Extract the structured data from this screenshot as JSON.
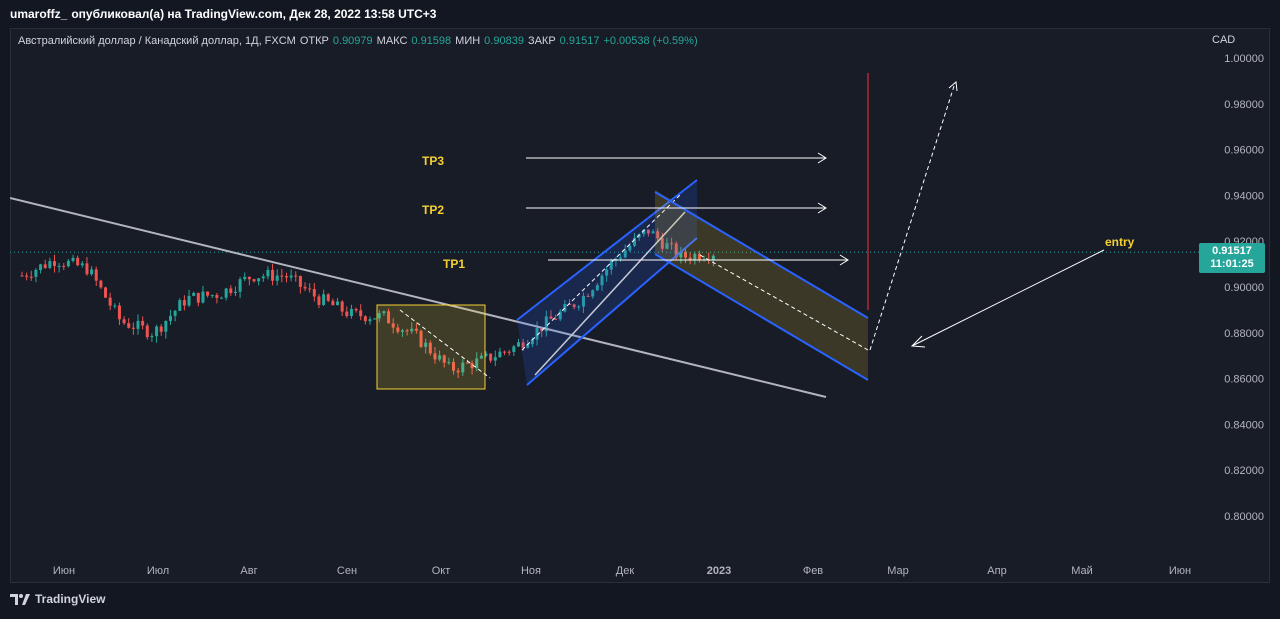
{
  "header": {
    "author": "umaroffz_",
    "published_text": "опубликовал(а) на TradingView.com, Дек 28, 2022 13:58 UTC+3"
  },
  "legend": {
    "symbol": "Австралийский доллар / Канадский доллар, 1Д, FXCM",
    "open_label": "ОТКР",
    "open": "0.90979",
    "high_label": "МАКС",
    "high": "0.91598",
    "low_label": "МИН",
    "low": "0.90839",
    "close_label": "ЗАКР",
    "close": "0.91517",
    "change": "+0.00538 (+0.59%)"
  },
  "price_axis": {
    "currency": "CAD",
    "ticks": [
      "1.00000",
      "0.98000",
      "0.96000",
      "0.94000",
      "0.92000",
      "0.90000",
      "0.88000",
      "0.86000",
      "0.84000",
      "0.82000",
      "0.80000"
    ]
  },
  "time_axis": {
    "ticks": [
      "Июн",
      "Июл",
      "Авг",
      "Сен",
      "Окт",
      "Ноя",
      "Дек",
      "2023",
      "Фев",
      "Мар",
      "Апр",
      "Май",
      "Июн"
    ]
  },
  "last_price": {
    "price": "0.91517",
    "countdown": "11:01:25"
  },
  "annotations": {
    "tp3": "TP3",
    "tp2": "TP2",
    "tp1": "TP1",
    "entry": "entry"
  },
  "colors": {
    "up": "#26a69a",
    "down": "#ef5350",
    "background": "#131722",
    "panel": "#181c27",
    "channel": "#2962ff",
    "target_label": "#f5d033",
    "stop_line": "#b22833"
  },
  "footer": {
    "brand": "TradingView"
  },
  "chart_data": {
    "type": "candlestick",
    "symbol": "AUD/CAD",
    "ylim": [
      0.79,
      1.01
    ],
    "x": [
      "Июн",
      "Июл",
      "Авг",
      "Сен",
      "Окт",
      "Ноя",
      "Дек",
      "2023",
      "Фев",
      "Мар",
      "Апр",
      "Май",
      "Июн"
    ],
    "close_series": [
      {
        "date": "Июн",
        "value": 0.905
      },
      {
        "date": "Июн",
        "value": 0.912
      },
      {
        "date": "Июн",
        "value": 0.908
      },
      {
        "date": "Июл",
        "value": 0.885
      },
      {
        "date": "Июл",
        "value": 0.88
      },
      {
        "date": "Июл",
        "value": 0.895
      },
      {
        "date": "Авг",
        "value": 0.897
      },
      {
        "date": "Авг",
        "value": 0.905
      },
      {
        "date": "Авг",
        "value": 0.905
      },
      {
        "date": "Сен",
        "value": 0.895
      },
      {
        "date": "Сен",
        "value": 0.888
      },
      {
        "date": "Сен",
        "value": 0.887
      },
      {
        "date": "Окт",
        "value": 0.878
      },
      {
        "date": "Окт",
        "value": 0.864
      },
      {
        "date": "Окт",
        "value": 0.868
      },
      {
        "date": "Ноя",
        "value": 0.874
      },
      {
        "date": "Ноя",
        "value": 0.885
      },
      {
        "date": "Ноя",
        "value": 0.895
      },
      {
        "date": "Дек",
        "value": 0.912
      },
      {
        "date": "Дек",
        "value": 0.925
      },
      {
        "date": "Дек",
        "value": 0.913
      },
      {
        "date": "Дек",
        "value": 0.91517
      }
    ],
    "levels": {
      "TP1": 0.911,
      "TP2": 0.933,
      "TP3": 0.955
    }
  }
}
